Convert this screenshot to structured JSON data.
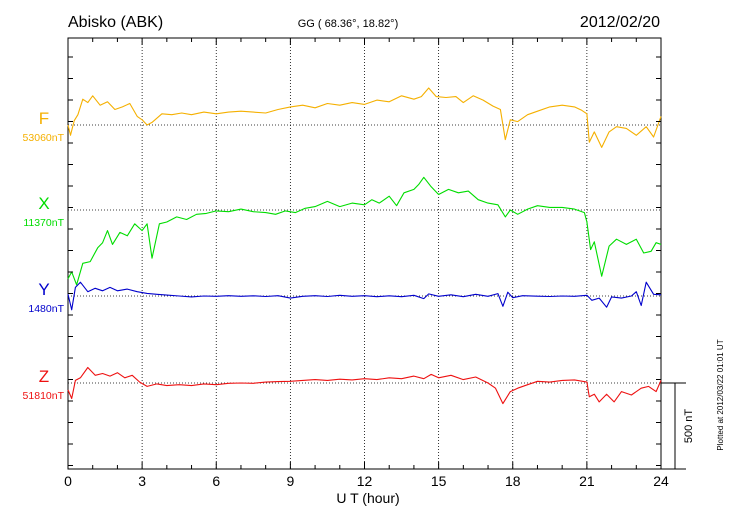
{
  "header": {
    "station": "Abisko (ABK)",
    "coords": "GG ( 68.36°,  18.82°)",
    "date": "2012/02/20"
  },
  "footer": {
    "plotted_note": "Plotted at 2012/03/22 01:01  UT",
    "scale_label": "500 nT"
  },
  "chart_data": {
    "type": "line",
    "xlabel": "U T (hour)",
    "xlim": [
      0,
      24
    ],
    "xticks": [
      0,
      3,
      6,
      9,
      12,
      15,
      18,
      21,
      24
    ],
    "scale_nT": 500,
    "series": [
      {
        "name": "F",
        "baseline_label": "53060nT",
        "color": "#f5b000",
        "values": [
          [
            0,
            53060
          ],
          [
            0.1,
            53000
          ],
          [
            0.25,
            53085
          ],
          [
            0.4,
            53120
          ],
          [
            0.6,
            53210
          ],
          [
            0.8,
            53190
          ],
          [
            1.0,
            53230
          ],
          [
            1.3,
            53175
          ],
          [
            1.6,
            53195
          ],
          [
            1.9,
            53150
          ],
          [
            2.2,
            53165
          ],
          [
            2.5,
            53185
          ],
          [
            2.8,
            53110
          ],
          [
            3.0,
            53090
          ],
          [
            3.2,
            53060
          ],
          [
            3.4,
            53075
          ],
          [
            3.8,
            53125
          ],
          [
            4.2,
            53120
          ],
          [
            4.6,
            53130
          ],
          [
            5.0,
            53120
          ],
          [
            5.5,
            53135
          ],
          [
            6.0,
            53125
          ],
          [
            6.5,
            53135
          ],
          [
            7.0,
            53140
          ],
          [
            7.5,
            53135
          ],
          [
            8.0,
            53130
          ],
          [
            8.5,
            53150
          ],
          [
            9.0,
            53165
          ],
          [
            9.5,
            53175
          ],
          [
            10.0,
            53160
          ],
          [
            10.5,
            53185
          ],
          [
            11.0,
            53175
          ],
          [
            11.5,
            53190
          ],
          [
            12.0,
            53180
          ],
          [
            12.5,
            53205
          ],
          [
            13.0,
            53195
          ],
          [
            13.5,
            53230
          ],
          [
            14.0,
            53210
          ],
          [
            14.3,
            53225
          ],
          [
            14.6,
            53275
          ],
          [
            14.9,
            53225
          ],
          [
            15.3,
            53220
          ],
          [
            15.7,
            53225
          ],
          [
            16.0,
            53190
          ],
          [
            16.4,
            53230
          ],
          [
            16.8,
            53205
          ],
          [
            17.2,
            53170
          ],
          [
            17.5,
            53150
          ],
          [
            17.7,
            52975
          ],
          [
            17.9,
            53090
          ],
          [
            18.2,
            53080
          ],
          [
            18.6,
            53120
          ],
          [
            19.0,
            53140
          ],
          [
            19.5,
            53165
          ],
          [
            20.0,
            53175
          ],
          [
            20.5,
            53165
          ],
          [
            20.8,
            53145
          ],
          [
            21.0,
            53125
          ],
          [
            21.1,
            52960
          ],
          [
            21.3,
            53020
          ],
          [
            21.6,
            52930
          ],
          [
            21.9,
            53020
          ],
          [
            22.2,
            53050
          ],
          [
            22.6,
            53040
          ],
          [
            23.0,
            53000
          ],
          [
            23.4,
            53050
          ],
          [
            23.7,
            52990
          ],
          [
            24.0,
            53110
          ]
        ]
      },
      {
        "name": "X",
        "baseline_label": "11370nT",
        "color": "#00dd00",
        "values": [
          [
            0,
            10970
          ],
          [
            0.15,
            11010
          ],
          [
            0.35,
            10935
          ],
          [
            0.6,
            11060
          ],
          [
            0.9,
            11070
          ],
          [
            1.2,
            11150
          ],
          [
            1.4,
            11180
          ],
          [
            1.6,
            11250
          ],
          [
            1.8,
            11170
          ],
          [
            2.1,
            11240
          ],
          [
            2.4,
            11220
          ],
          [
            2.7,
            11290
          ],
          [
            3.0,
            11250
          ],
          [
            3.2,
            11290
          ],
          [
            3.4,
            11090
          ],
          [
            3.7,
            11290
          ],
          [
            4.0,
            11300
          ],
          [
            4.4,
            11330
          ],
          [
            4.8,
            11315
          ],
          [
            5.2,
            11345
          ],
          [
            5.6,
            11350
          ],
          [
            6.0,
            11365
          ],
          [
            6.5,
            11360
          ],
          [
            7.0,
            11375
          ],
          [
            7.5,
            11360
          ],
          [
            8.0,
            11355
          ],
          [
            8.4,
            11345
          ],
          [
            8.8,
            11365
          ],
          [
            9.2,
            11355
          ],
          [
            9.6,
            11380
          ],
          [
            10.0,
            11390
          ],
          [
            10.5,
            11420
          ],
          [
            11.0,
            11390
          ],
          [
            11.5,
            11410
          ],
          [
            12.0,
            11400
          ],
          [
            12.3,
            11430
          ],
          [
            12.6,
            11410
          ],
          [
            13.0,
            11450
          ],
          [
            13.3,
            11395
          ],
          [
            13.6,
            11470
          ],
          [
            14.0,
            11490
          ],
          [
            14.2,
            11520
          ],
          [
            14.4,
            11560
          ],
          [
            14.7,
            11505
          ],
          [
            15.0,
            11460
          ],
          [
            15.4,
            11490
          ],
          [
            15.8,
            11470
          ],
          [
            16.2,
            11480
          ],
          [
            16.6,
            11430
          ],
          [
            17.0,
            11410
          ],
          [
            17.4,
            11400
          ],
          [
            17.7,
            11330
          ],
          [
            17.9,
            11370
          ],
          [
            18.2,
            11345
          ],
          [
            18.6,
            11375
          ],
          [
            19.0,
            11395
          ],
          [
            19.5,
            11385
          ],
          [
            20.0,
            11385
          ],
          [
            20.5,
            11375
          ],
          [
            20.9,
            11355
          ],
          [
            21.0,
            11300
          ],
          [
            21.15,
            11140
          ],
          [
            21.3,
            11185
          ],
          [
            21.6,
            10985
          ],
          [
            21.9,
            11160
          ],
          [
            22.2,
            11200
          ],
          [
            22.6,
            11170
          ],
          [
            23.0,
            11200
          ],
          [
            23.3,
            11120
          ],
          [
            23.6,
            11130
          ],
          [
            23.8,
            11180
          ],
          [
            24.0,
            11170
          ]
        ]
      },
      {
        "name": "Y",
        "baseline_label": "1480nT",
        "color": "#0000cc",
        "values": [
          [
            0,
            1490
          ],
          [
            0.15,
            1400
          ],
          [
            0.3,
            1530
          ],
          [
            0.5,
            1560
          ],
          [
            0.8,
            1505
          ],
          [
            1.1,
            1525
          ],
          [
            1.4,
            1510
          ],
          [
            1.7,
            1530
          ],
          [
            2.0,
            1510
          ],
          [
            2.4,
            1520
          ],
          [
            2.8,
            1505
          ],
          [
            3.2,
            1495
          ],
          [
            3.6,
            1490
          ],
          [
            4.0,
            1485
          ],
          [
            4.5,
            1480
          ],
          [
            5.0,
            1475
          ],
          [
            5.5,
            1480
          ],
          [
            6.0,
            1478
          ],
          [
            6.5,
            1482
          ],
          [
            7.0,
            1478
          ],
          [
            7.5,
            1481
          ],
          [
            8.0,
            1477
          ],
          [
            8.5,
            1482
          ],
          [
            9.0,
            1468
          ],
          [
            9.5,
            1478
          ],
          [
            10.0,
            1482
          ],
          [
            10.5,
            1477
          ],
          [
            11.0,
            1484
          ],
          [
            11.5,
            1478
          ],
          [
            12.0,
            1482
          ],
          [
            12.5,
            1476
          ],
          [
            13.0,
            1481
          ],
          [
            13.5,
            1476
          ],
          [
            14.0,
            1484
          ],
          [
            14.4,
            1465
          ],
          [
            14.6,
            1492
          ],
          [
            15.0,
            1478
          ],
          [
            15.5,
            1487
          ],
          [
            16.0,
            1476
          ],
          [
            16.5,
            1490
          ],
          [
            17.0,
            1478
          ],
          [
            17.4,
            1494
          ],
          [
            17.6,
            1420
          ],
          [
            17.8,
            1502
          ],
          [
            18.0,
            1470
          ],
          [
            18.4,
            1482
          ],
          [
            19.0,
            1479
          ],
          [
            19.5,
            1477
          ],
          [
            20.0,
            1480
          ],
          [
            20.5,
            1478
          ],
          [
            21.0,
            1484
          ],
          [
            21.2,
            1455
          ],
          [
            21.5,
            1468
          ],
          [
            21.8,
            1415
          ],
          [
            22.0,
            1475
          ],
          [
            22.4,
            1468
          ],
          [
            22.8,
            1480
          ],
          [
            23.0,
            1505
          ],
          [
            23.2,
            1425
          ],
          [
            23.4,
            1560
          ],
          [
            23.7,
            1490
          ],
          [
            24.0,
            1487
          ]
        ]
      },
      {
        "name": "Z",
        "baseline_label": "51810nT",
        "color": "#ee1111",
        "values": [
          [
            0,
            51770
          ],
          [
            0.15,
            51720
          ],
          [
            0.3,
            51825
          ],
          [
            0.5,
            51840
          ],
          [
            0.8,
            51900
          ],
          [
            1.1,
            51855
          ],
          [
            1.4,
            51865
          ],
          [
            1.7,
            51850
          ],
          [
            2.0,
            51870
          ],
          [
            2.3,
            51840
          ],
          [
            2.6,
            51855
          ],
          [
            2.9,
            51815
          ],
          [
            3.2,
            51790
          ],
          [
            3.6,
            51805
          ],
          [
            4.0,
            51795
          ],
          [
            4.5,
            51800
          ],
          [
            5.0,
            51795
          ],
          [
            5.5,
            51805
          ],
          [
            6.0,
            51800
          ],
          [
            6.5,
            51808
          ],
          [
            7.0,
            51810
          ],
          [
            7.5,
            51808
          ],
          [
            8.0,
            51815
          ],
          [
            8.5,
            51818
          ],
          [
            9.0,
            51820
          ],
          [
            9.5,
            51825
          ],
          [
            10.0,
            51830
          ],
          [
            10.5,
            51825
          ],
          [
            11.0,
            51832
          ],
          [
            11.5,
            51828
          ],
          [
            12.0,
            51835
          ],
          [
            12.5,
            51830
          ],
          [
            13.0,
            51840
          ],
          [
            13.5,
            51835
          ],
          [
            14.0,
            51850
          ],
          [
            14.4,
            51835
          ],
          [
            14.7,
            51860
          ],
          [
            15.0,
            51840
          ],
          [
            15.5,
            51855
          ],
          [
            16.0,
            51830
          ],
          [
            16.5,
            51845
          ],
          [
            17.0,
            51810
          ],
          [
            17.3,
            51780
          ],
          [
            17.6,
            51690
          ],
          [
            17.9,
            51760
          ],
          [
            18.2,
            51780
          ],
          [
            18.6,
            51800
          ],
          [
            19.0,
            51820
          ],
          [
            19.5,
            51815
          ],
          [
            20.0,
            51825
          ],
          [
            20.5,
            51828
          ],
          [
            21.0,
            51815
          ],
          [
            21.1,
            51730
          ],
          [
            21.3,
            51745
          ],
          [
            21.5,
            51700
          ],
          [
            21.8,
            51745
          ],
          [
            22.1,
            51700
          ],
          [
            22.4,
            51760
          ],
          [
            22.8,
            51740
          ],
          [
            23.2,
            51780
          ],
          [
            23.5,
            51790
          ],
          [
            23.8,
            51760
          ],
          [
            24.0,
            51825
          ]
        ]
      }
    ]
  }
}
